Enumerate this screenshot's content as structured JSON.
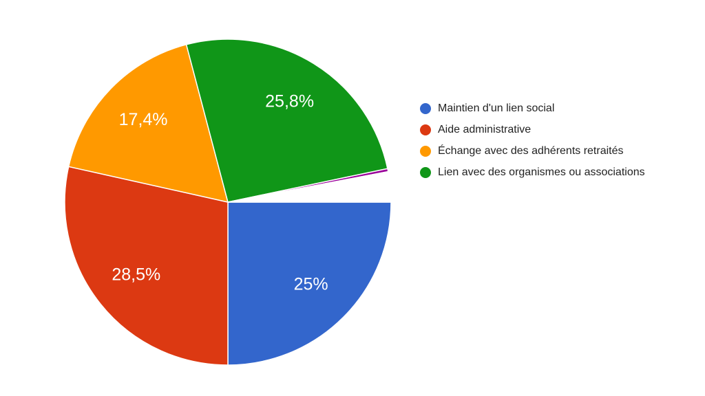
{
  "chart_data": {
    "type": "pie",
    "categories": [
      "Maintien d'un lien social",
      "Aide administrative",
      "Échange avec des adhérents retraités",
      "Lien avec des organismes ou associations",
      null,
      null
    ],
    "values": [
      25,
      28.5,
      17.4,
      25.8,
      0.3,
      3
    ],
    "value_labels": [
      "25%",
      "28,5%",
      "17,4%",
      "25,8%",
      null,
      null
    ],
    "colors": [
      "#3366cc",
      "#dc3912",
      "#ff9900",
      "#109618",
      "#990099",
      "#ffffff"
    ],
    "legend": "right"
  }
}
